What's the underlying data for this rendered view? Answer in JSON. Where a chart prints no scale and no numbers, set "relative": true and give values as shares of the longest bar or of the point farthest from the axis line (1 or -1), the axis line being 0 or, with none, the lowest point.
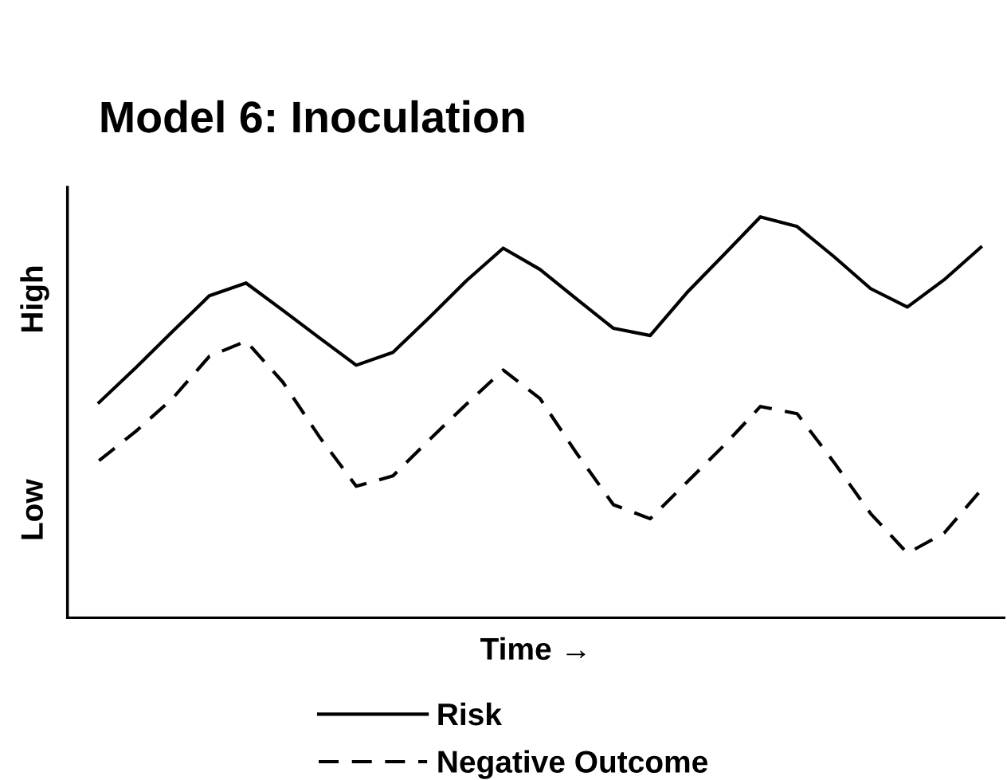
{
  "chart_data": {
    "type": "line",
    "title": "Model 6: Inoculation",
    "xlabel": "Time →",
    "annotations": [
      "High",
      "Low"
    ],
    "relative": true,
    "categories": [
      null,
      null,
      null,
      null,
      null,
      null,
      null,
      null,
      null,
      null,
      null,
      null,
      null,
      null,
      null,
      null,
      null,
      null,
      null,
      null,
      null,
      null,
      null,
      null,
      null
    ],
    "grid": false,
    "legend": "bottom",
    "marker": "none",
    "series": [
      {
        "name": "Risk",
        "color": "#000000",
        "line_style": "solid",
        "values": [
          0.537,
          0.624,
          0.714,
          0.803,
          0.835,
          0.767,
          0.698,
          0.63,
          0.662,
          0.75,
          0.841,
          0.922,
          0.869,
          0.795,
          0.722,
          0.704,
          0.811,
          0.905,
          1.0,
          0.976,
          0.901,
          0.821,
          0.775,
          0.843,
          0.924
        ]
      },
      {
        "name": "Negative Outcome",
        "color": "#000000",
        "line_style": "dashed",
        "values": [
          0.392,
          0.465,
          0.547,
          0.652,
          0.69,
          0.588,
          0.451,
          0.328,
          0.354,
          0.445,
          0.533,
          0.618,
          0.547,
          0.41,
          0.282,
          0.247,
          0.338,
          0.429,
          0.527,
          0.509,
          0.388,
          0.26,
          0.161,
          0.211,
          0.318
        ]
      }
    ]
  }
}
